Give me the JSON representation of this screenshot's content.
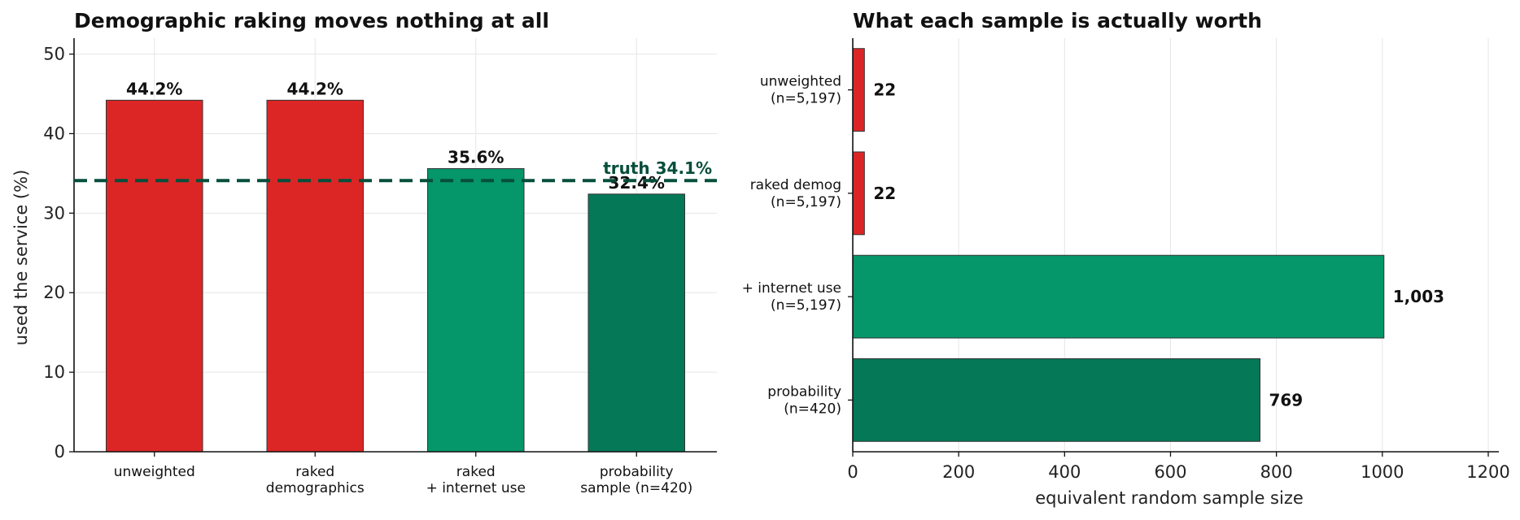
{
  "chart_data": [
    {
      "type": "bar",
      "title": "Demographic raking moves nothing at all",
      "ylabel": "used the service (%)",
      "ylim": [
        0,
        52
      ],
      "yticks": [
        0,
        10,
        20,
        30,
        40,
        50
      ],
      "grid": true,
      "categories": [
        "unweighted",
        "raked\ndemographics",
        "raked\n+ internet use",
        "probability\nsample (n=420)"
      ],
      "values": [
        44.2,
        44.2,
        35.6,
        32.4
      ],
      "data_labels": [
        "44.2%",
        "44.2%",
        "35.6%",
        "32.4%"
      ],
      "colors": [
        "#dc2626",
        "#dc2626",
        "#059669",
        "#047857"
      ],
      "reference_line": {
        "value": 34.1,
        "label": "truth 34.1%",
        "color": "#064e3b",
        "style": "dashed"
      }
    },
    {
      "type": "bar",
      "orientation": "horizontal",
      "title": "What each sample is actually worth",
      "xlabel": "equivalent random sample size",
      "xlim": [
        0,
        1220
      ],
      "xticks": [
        0,
        200,
        400,
        600,
        800,
        1000,
        1200
      ],
      "grid": true,
      "categories": [
        "unweighted\n(n=5,197)",
        "raked demog\n(n=5,197)",
        "+ internet use\n(n=5,197)",
        "probability\n(n=420)"
      ],
      "values": [
        22,
        22,
        1003,
        769
      ],
      "data_labels": [
        "22",
        "22",
        "1,003",
        "769"
      ],
      "colors": [
        "#dc2626",
        "#dc2626",
        "#059669",
        "#047857"
      ]
    }
  ]
}
